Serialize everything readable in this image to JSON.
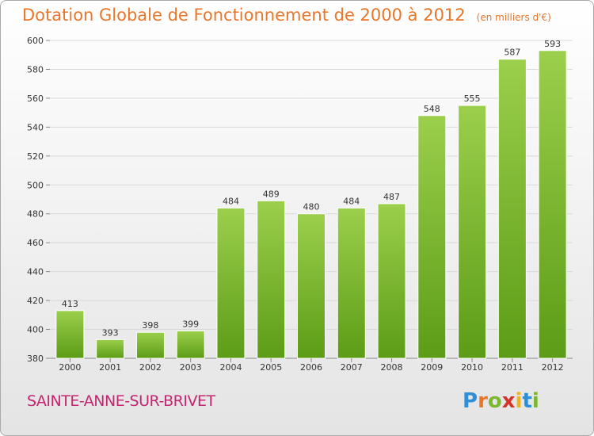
{
  "header": {
    "title": "Dotation Globale de Fonctionnement de 2000 à 2012",
    "subtitle": "(en milliers d'€)"
  },
  "footer": {
    "commune": "SAINTE-ANNE-SUR-BRIVET",
    "logo_letters": [
      "P",
      "r",
      "o",
      "x",
      "i",
      "t",
      "i"
    ],
    "logo_colors": [
      "#2f8fd6",
      "#e8762b",
      "#7db72f",
      "#d6322c",
      "#f2b21b",
      "#2f8fd6",
      "#7db72f"
    ]
  },
  "chart_data": {
    "type": "bar",
    "categories": [
      "2000",
      "2001",
      "2002",
      "2003",
      "2004",
      "2005",
      "2006",
      "2007",
      "2008",
      "2009",
      "2010",
      "2011",
      "2012"
    ],
    "values": [
      413,
      393,
      398,
      399,
      484,
      489,
      480,
      484,
      487,
      548,
      555,
      587,
      593
    ],
    "ylim": [
      380,
      600
    ],
    "yticks": [
      380,
      400,
      420,
      440,
      460,
      480,
      500,
      520,
      540,
      560,
      580,
      600
    ],
    "grid": true,
    "bar_color_top": "#9bcf4c",
    "bar_color_bottom": "#5c9c16"
  }
}
